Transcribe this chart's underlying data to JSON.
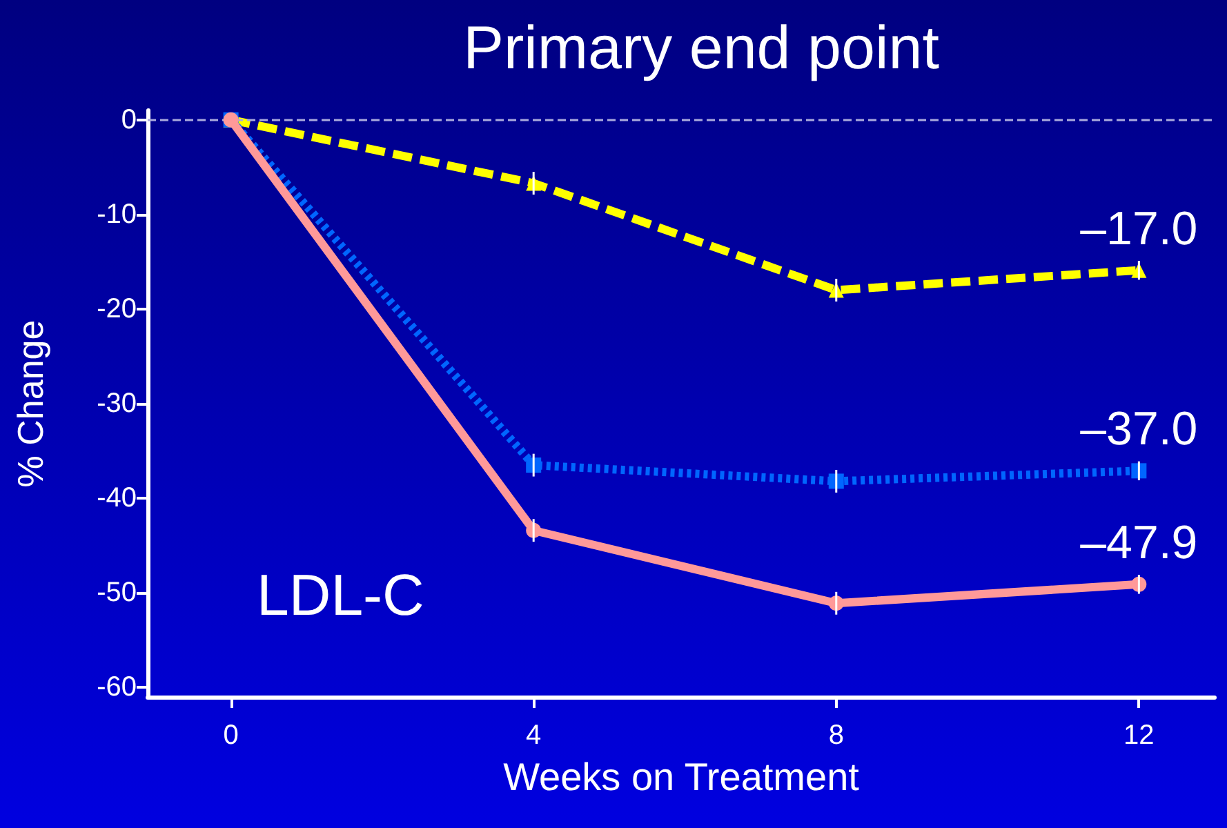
{
  "chart_data": {
    "type": "line",
    "title": "Primary end point",
    "xlabel": "Weeks on Treatment",
    "ylabel": "% Change",
    "x": [
      0,
      4,
      8,
      12
    ],
    "series": [
      {
        "color": "#ffff00",
        "marker": "triangle",
        "line_style": "dashed",
        "values": [
          0,
          -6.7,
          -18.0,
          -15.9
        ],
        "errors": [
          null,
          1.2,
          1.2,
          1.0
        ]
      },
      {
        "color": "#0066ff",
        "marker": "square",
        "line_style": "dotted",
        "values": [
          0,
          -36.5,
          -38.2,
          -37.1
        ],
        "errors": [
          null,
          1.2,
          1.2,
          1.0
        ]
      },
      {
        "color": "#ff9999",
        "marker": "circle",
        "line_style": "solid",
        "values": [
          0,
          -43.4,
          -51.1,
          -49.1
        ],
        "errors": [
          null,
          1.2,
          1.2,
          1.0
        ]
      }
    ],
    "annotations": [
      "–17.0",
      "–37.0",
      "–47.9",
      "LDL-C"
    ],
    "ref_lines": [
      {
        "axis": "y",
        "value": 0,
        "color": "#aaaadd",
        "line_style": "dashed"
      }
    ],
    "xlim": [
      -1.1,
      13
    ],
    "xticks": [
      0,
      4,
      8,
      12
    ],
    "ylim": [
      -61,
      1
    ],
    "yticks": [
      -60,
      -50,
      -40,
      -30,
      -20,
      -10,
      0
    ],
    "grid": false
  }
}
